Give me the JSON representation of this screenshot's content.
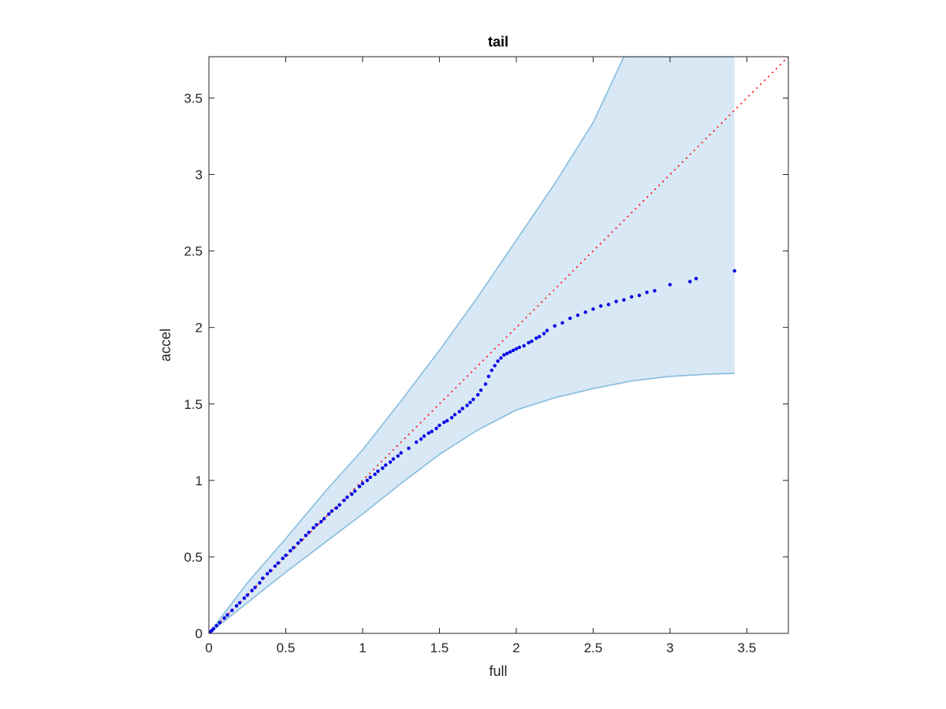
{
  "chart_data": {
    "type": "scatter",
    "title": "tail",
    "xlabel": "full",
    "ylabel": "accel",
    "xlim": [
      0,
      3.77
    ],
    "ylim": [
      0,
      3.77
    ],
    "xticks": [
      0,
      0.5,
      1,
      1.5,
      2,
      2.5,
      3,
      3.5
    ],
    "yticks": [
      0,
      0.5,
      1,
      1.5,
      2,
      2.5,
      3,
      3.5
    ],
    "grid": false,
    "colors": {
      "band_fill": "#d8e8f4",
      "band_edge": "#86bddf",
      "points": "#0000e6",
      "reference_line": "#ff0000",
      "axes": "#262626"
    },
    "reference_line": {
      "style": "dotted",
      "x": [
        0,
        3.77
      ],
      "y": [
        0,
        3.77
      ]
    },
    "band": {
      "x": [
        0,
        0.25,
        0.5,
        0.75,
        1.0,
        1.25,
        1.5,
        1.75,
        2.0,
        2.25,
        2.5,
        2.7,
        2.75,
        3.0,
        3.25,
        3.42
      ],
      "upper": [
        0,
        0.33,
        0.62,
        0.92,
        1.2,
        1.52,
        1.85,
        2.2,
        2.57,
        2.94,
        3.34,
        3.77,
        3.77,
        3.77,
        3.77,
        3.77
      ],
      "lower": [
        0,
        0.2,
        0.4,
        0.59,
        0.78,
        0.98,
        1.17,
        1.33,
        1.46,
        1.54,
        1.6,
        1.64,
        1.65,
        1.68,
        1.695,
        1.7
      ]
    },
    "series": [
      {
        "x": [
          0,
          0.01,
          0.02,
          0.03,
          0.05,
          0.07,
          0.1,
          0.12,
          0.15,
          0.18,
          0.2,
          0.23,
          0.25,
          0.28,
          0.3,
          0.33,
          0.35,
          0.38,
          0.4,
          0.43,
          0.45,
          0.48,
          0.5,
          0.53,
          0.55,
          0.58,
          0.6,
          0.63,
          0.65,
          0.68,
          0.7,
          0.73,
          0.75,
          0.78,
          0.8,
          0.83,
          0.85,
          0.88,
          0.9,
          0.93,
          0.95,
          0.98,
          1.0,
          1.03,
          1.05,
          1.08,
          1.1,
          1.13,
          1.15,
          1.18,
          1.2,
          1.23,
          1.25,
          1.3,
          1.35,
          1.38,
          1.4,
          1.43,
          1.45,
          1.48,
          1.5,
          1.53,
          1.55,
          1.58,
          1.6,
          1.63,
          1.65,
          1.68,
          1.7,
          1.72,
          1.75,
          1.77,
          1.8,
          1.82,
          1.84,
          1.86,
          1.88,
          1.9,
          1.92,
          1.94,
          1.96,
          1.98,
          2.0,
          2.02,
          2.05,
          2.08,
          2.1,
          2.13,
          2.15,
          2.18,
          2.2,
          2.25,
          2.3,
          2.35,
          2.4,
          2.45,
          2.5,
          2.55,
          2.6,
          2.65,
          2.7,
          2.75,
          2.8,
          2.85,
          2.9,
          3.0,
          3.13,
          3.17,
          3.42
        ],
        "y": [
          0,
          0.01,
          0.02,
          0.03,
          0.05,
          0.07,
          0.1,
          0.12,
          0.15,
          0.18,
          0.2,
          0.23,
          0.25,
          0.28,
          0.3,
          0.33,
          0.36,
          0.39,
          0.41,
          0.44,
          0.46,
          0.49,
          0.51,
          0.54,
          0.56,
          0.59,
          0.61,
          0.64,
          0.66,
          0.69,
          0.71,
          0.73,
          0.75,
          0.78,
          0.8,
          0.82,
          0.84,
          0.87,
          0.89,
          0.91,
          0.93,
          0.96,
          0.98,
          1.0,
          1.02,
          1.04,
          1.06,
          1.08,
          1.1,
          1.12,
          1.14,
          1.16,
          1.18,
          1.21,
          1.25,
          1.27,
          1.29,
          1.31,
          1.32,
          1.34,
          1.36,
          1.38,
          1.39,
          1.41,
          1.43,
          1.45,
          1.47,
          1.49,
          1.51,
          1.53,
          1.56,
          1.59,
          1.63,
          1.68,
          1.72,
          1.75,
          1.78,
          1.8,
          1.82,
          1.83,
          1.84,
          1.85,
          1.86,
          1.87,
          1.88,
          1.9,
          1.91,
          1.93,
          1.94,
          1.96,
          1.98,
          2.01,
          2.03,
          2.06,
          2.08,
          2.1,
          2.12,
          2.14,
          2.15,
          2.17,
          2.18,
          2.2,
          2.21,
          2.23,
          2.24,
          2.28,
          2.3,
          2.32,
          2.37
        ]
      }
    ]
  }
}
